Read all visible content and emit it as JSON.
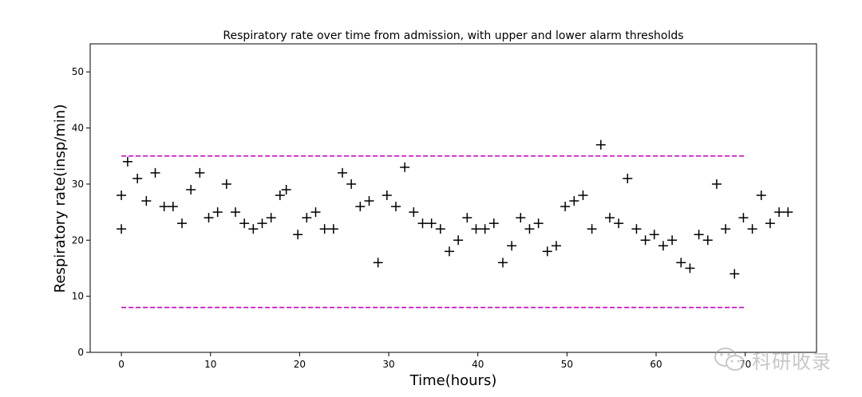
{
  "chart_data": {
    "type": "scatter",
    "title": "Respiratory rate over time from admission, with upper and lower alarm thresholds",
    "xlabel": "Time(hours)",
    "ylabel": "Respiratory rate(insp/min)",
    "xlim": [
      -3.5,
      78
    ],
    "ylim": [
      0,
      55
    ],
    "xticks": [
      0,
      10,
      20,
      30,
      40,
      50,
      60,
      70
    ],
    "xtick_labels": [
      "0",
      "10",
      "20",
      "30",
      "40",
      "50",
      "60",
      "70"
    ],
    "yticks": [
      0,
      10,
      20,
      30,
      40,
      50
    ],
    "ytick_labels": [
      "0",
      "10",
      "20",
      "30",
      "40",
      "50"
    ],
    "marker": "+",
    "marker_color": "#000000",
    "threshold_color": "#cc00cc",
    "grid": false,
    "series": [
      {
        "x": [
          0,
          0,
          0.7,
          1.8,
          2.8,
          3.8,
          4.8,
          5.8,
          6.8,
          7.8,
          8.8,
          9.8,
          10.8,
          11.8,
          12.8,
          13.8,
          14.8,
          15.8,
          16.8,
          17.8,
          18.5,
          19.8,
          20.8,
          21.8,
          22.8,
          23.8,
          24.8,
          25.8,
          26.8,
          27.8,
          28.8,
          29.8,
          30.8,
          31.8,
          32.8,
          33.8,
          34.8,
          35.8,
          36.8,
          37.8,
          38.8,
          39.8,
          40.8,
          41.8,
          42.8,
          43.8,
          44.8,
          45.8,
          46.8,
          47.8,
          48.8,
          49.8,
          50.8,
          51.8,
          52.8,
          53.8,
          54.8,
          55.8,
          56.8,
          57.8,
          58.8,
          59.8,
          60.8,
          61.8,
          62.8,
          63.8,
          64.8,
          65.8,
          66.8,
          67.8,
          68.8,
          69.8,
          70.8,
          71.8,
          72.8,
          73.8,
          74.8
        ],
        "y": [
          28,
          22,
          34,
          31,
          27,
          32,
          26,
          26,
          23,
          29,
          32,
          24,
          25,
          30,
          25,
          23,
          22,
          23,
          24,
          28,
          29,
          21,
          24,
          25,
          22,
          22,
          32,
          30,
          26,
          27,
          16,
          28,
          26,
          33,
          25,
          23,
          23,
          22,
          18,
          20,
          24,
          22,
          22,
          23,
          16,
          19,
          24,
          22,
          23,
          18,
          19,
          26,
          27,
          28,
          22,
          37,
          24,
          23,
          31,
          22,
          20,
          21,
          19,
          20,
          16,
          15,
          21,
          20,
          30,
          22,
          14,
          24,
          22,
          28,
          23,
          25,
          25
        ]
      }
    ],
    "thresholds": [
      {
        "y": 35,
        "x_range": [
          0,
          70
        ]
      },
      {
        "y": 8,
        "x_range": [
          0,
          70
        ]
      }
    ]
  },
  "watermark": {
    "text": "科研收录",
    "icon": "wechat-icon"
  }
}
